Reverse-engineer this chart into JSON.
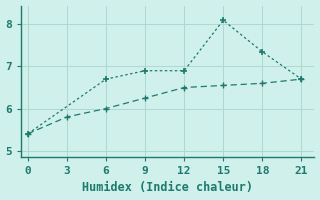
{
  "xlabel": "Humidex (Indice chaleur)",
  "line1_x": [
    0,
    6,
    9,
    12,
    15,
    18,
    21
  ],
  "line1_y": [
    5.4,
    6.7,
    6.9,
    6.9,
    8.1,
    7.35,
    6.7
  ],
  "line2_x": [
    0,
    3,
    6,
    9,
    12,
    15,
    18,
    21
  ],
  "line2_y": [
    5.4,
    5.8,
    6.0,
    6.25,
    6.5,
    6.55,
    6.6,
    6.7
  ],
  "line_color": "#1e7a6e",
  "bg_color": "#cff0eb",
  "grid_color": "#aed8d2",
  "spine_color": "#1e7a6e",
  "xlim": [
    -0.5,
    22
  ],
  "ylim": [
    4.85,
    8.45
  ],
  "xticks": [
    0,
    3,
    6,
    9,
    12,
    15,
    18,
    21
  ],
  "yticks": [
    5,
    6,
    7,
    8
  ],
  "xlabel_fontsize": 8.5,
  "tick_fontsize": 8
}
